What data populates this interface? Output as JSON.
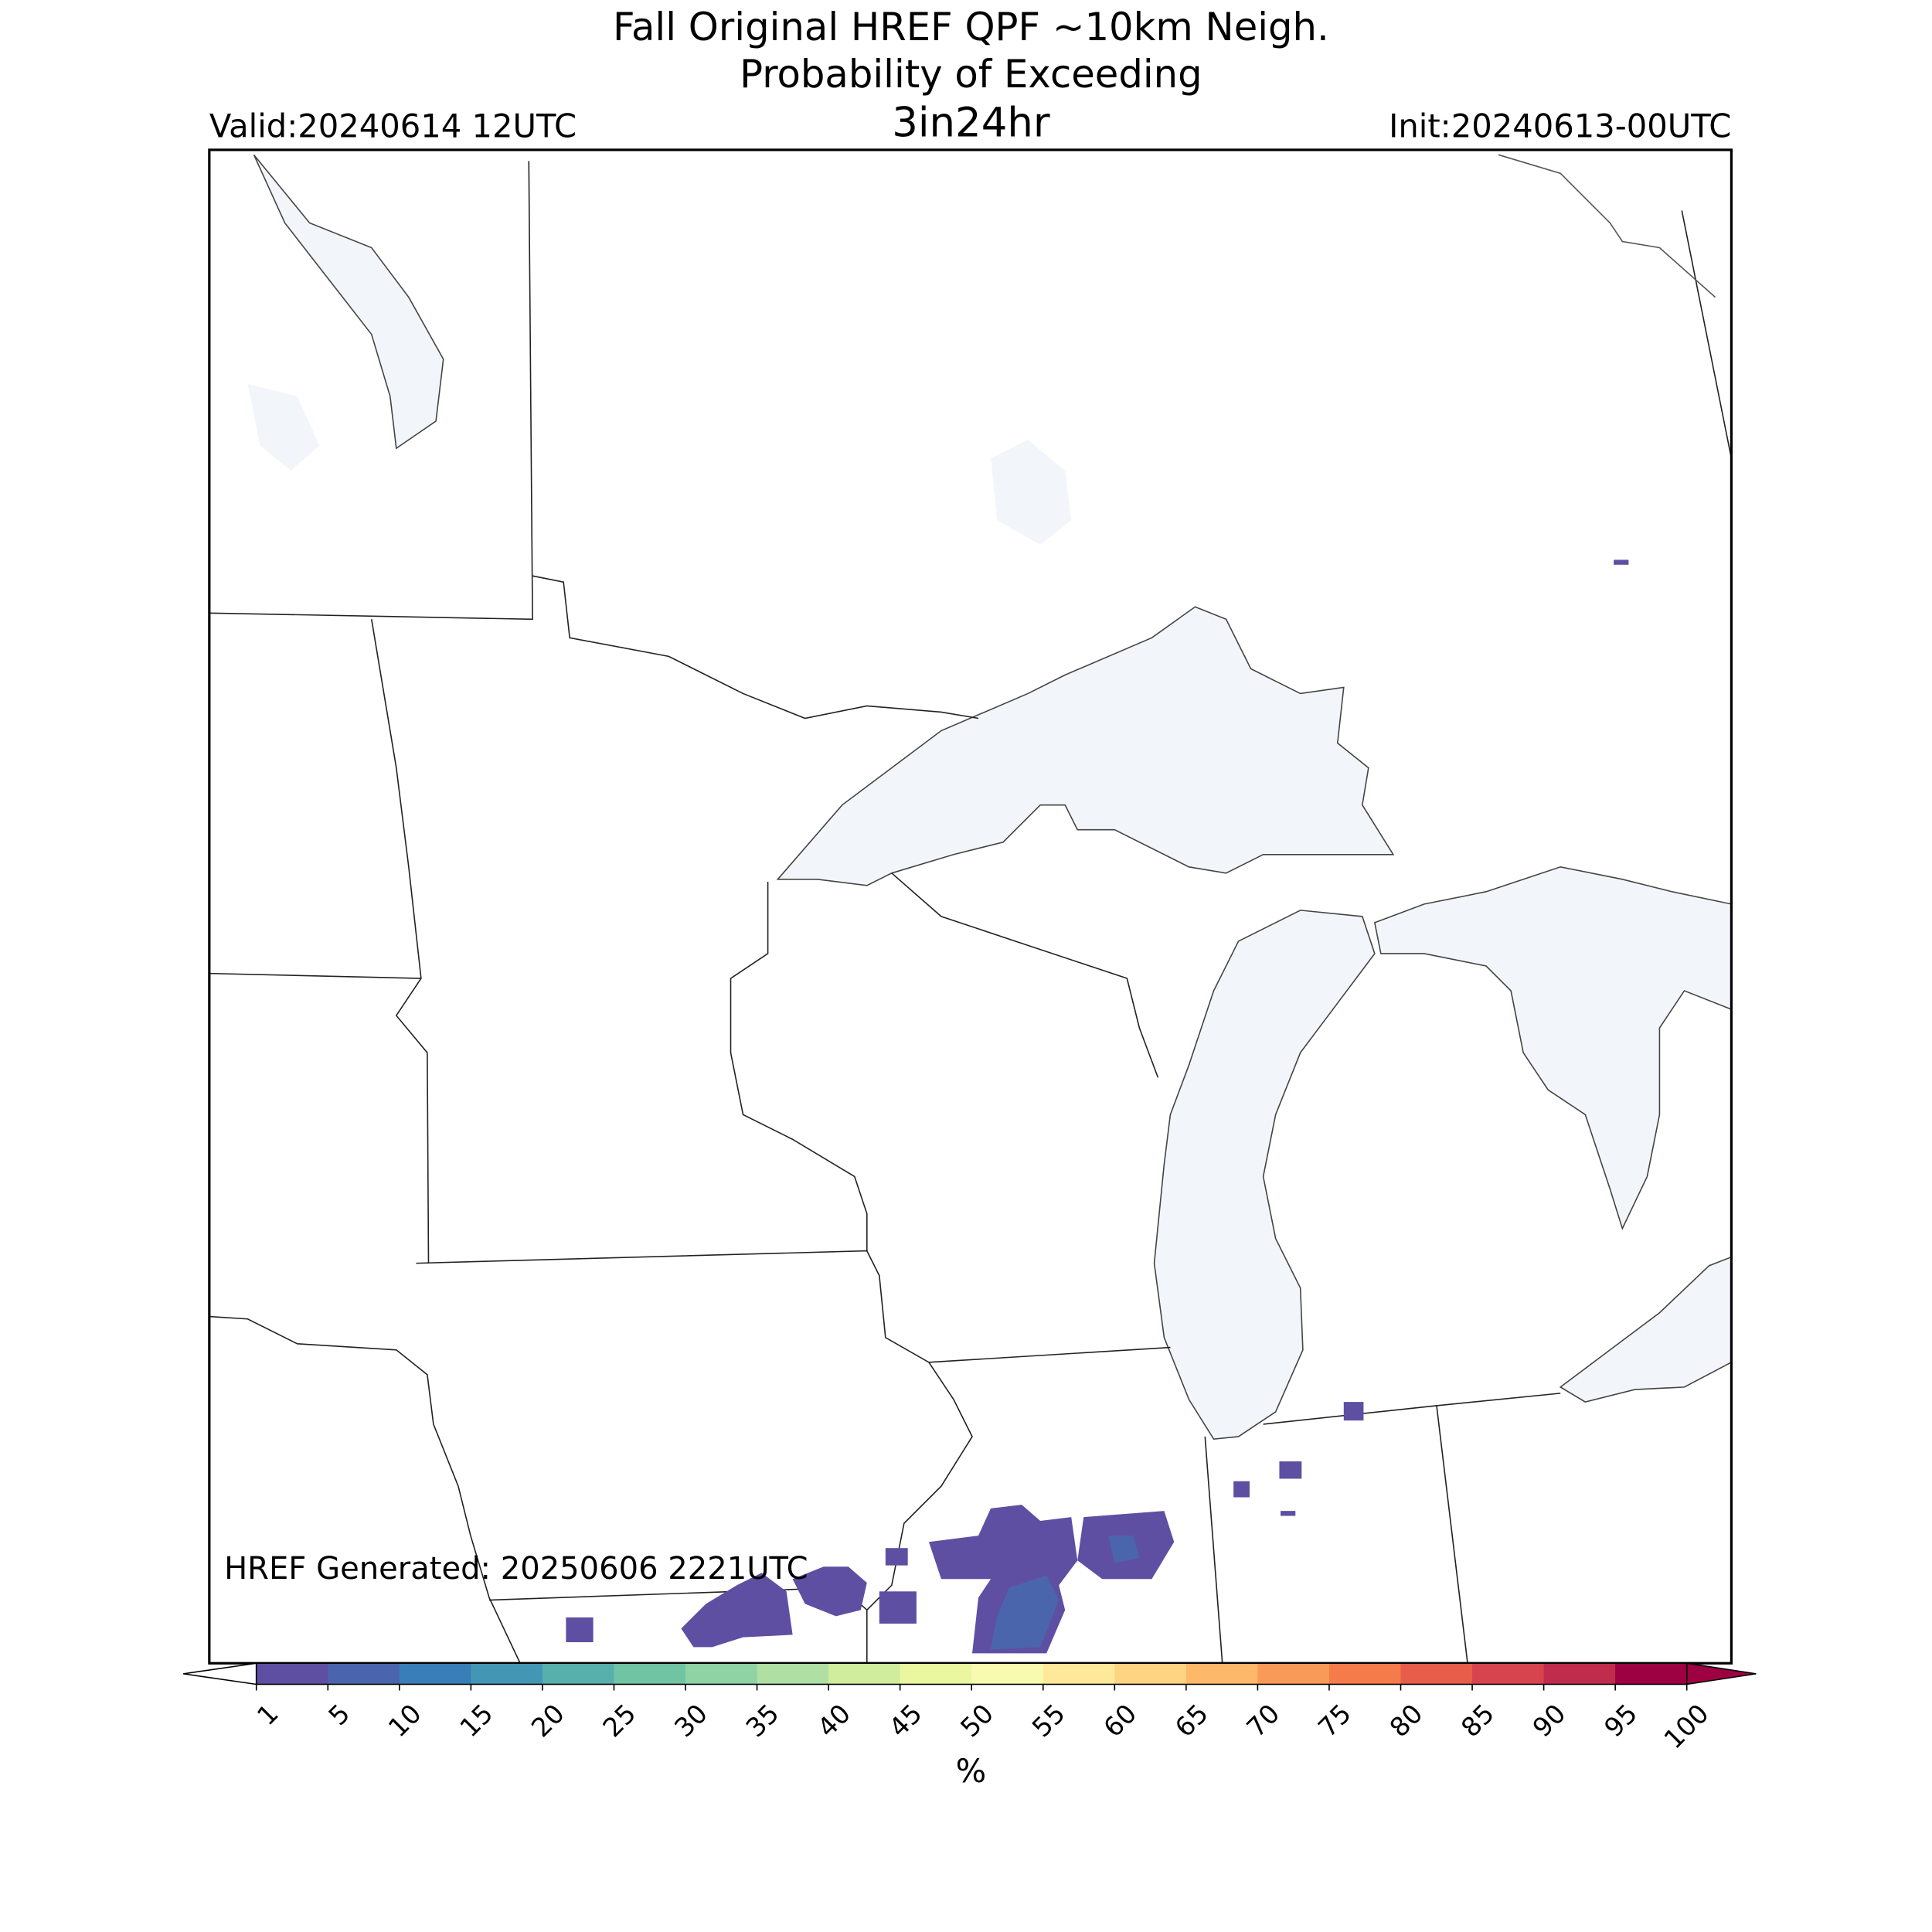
{
  "header": {
    "title": [
      "Fall Original HREF QPF ~10km Neigh.",
      "Probability of Exceeding",
      "3in24hr"
    ],
    "valid": "Valid:20240614 12UTC",
    "init": "Init:20240613-00UTC"
  },
  "footer": {
    "generated": "HREF Generated: 20250606 2221UTC"
  },
  "colorbar": {
    "label": "%",
    "levels": [
      1,
      5,
      10,
      15,
      20,
      25,
      30,
      35,
      40,
      45,
      50,
      55,
      60,
      65,
      70,
      75,
      80,
      85,
      90,
      95,
      100
    ],
    "colors": [
      "#5e4fa2",
      "#4b65ad",
      "#3a7eb8",
      "#4497b4",
      "#57b0ab",
      "#70c4a4",
      "#8fd2a4",
      "#b0dfa3",
      "#d0ec9d",
      "#eaf79e",
      "#f7fbb0",
      "#fee99a",
      "#fed382",
      "#fdb869",
      "#fa9a58",
      "#f57b4a",
      "#e75d4a",
      "#d7444e",
      "#c12b4c",
      "#9e0142"
    ],
    "under_color": "#ffffff",
    "over_color": "#9e0142"
  }
}
